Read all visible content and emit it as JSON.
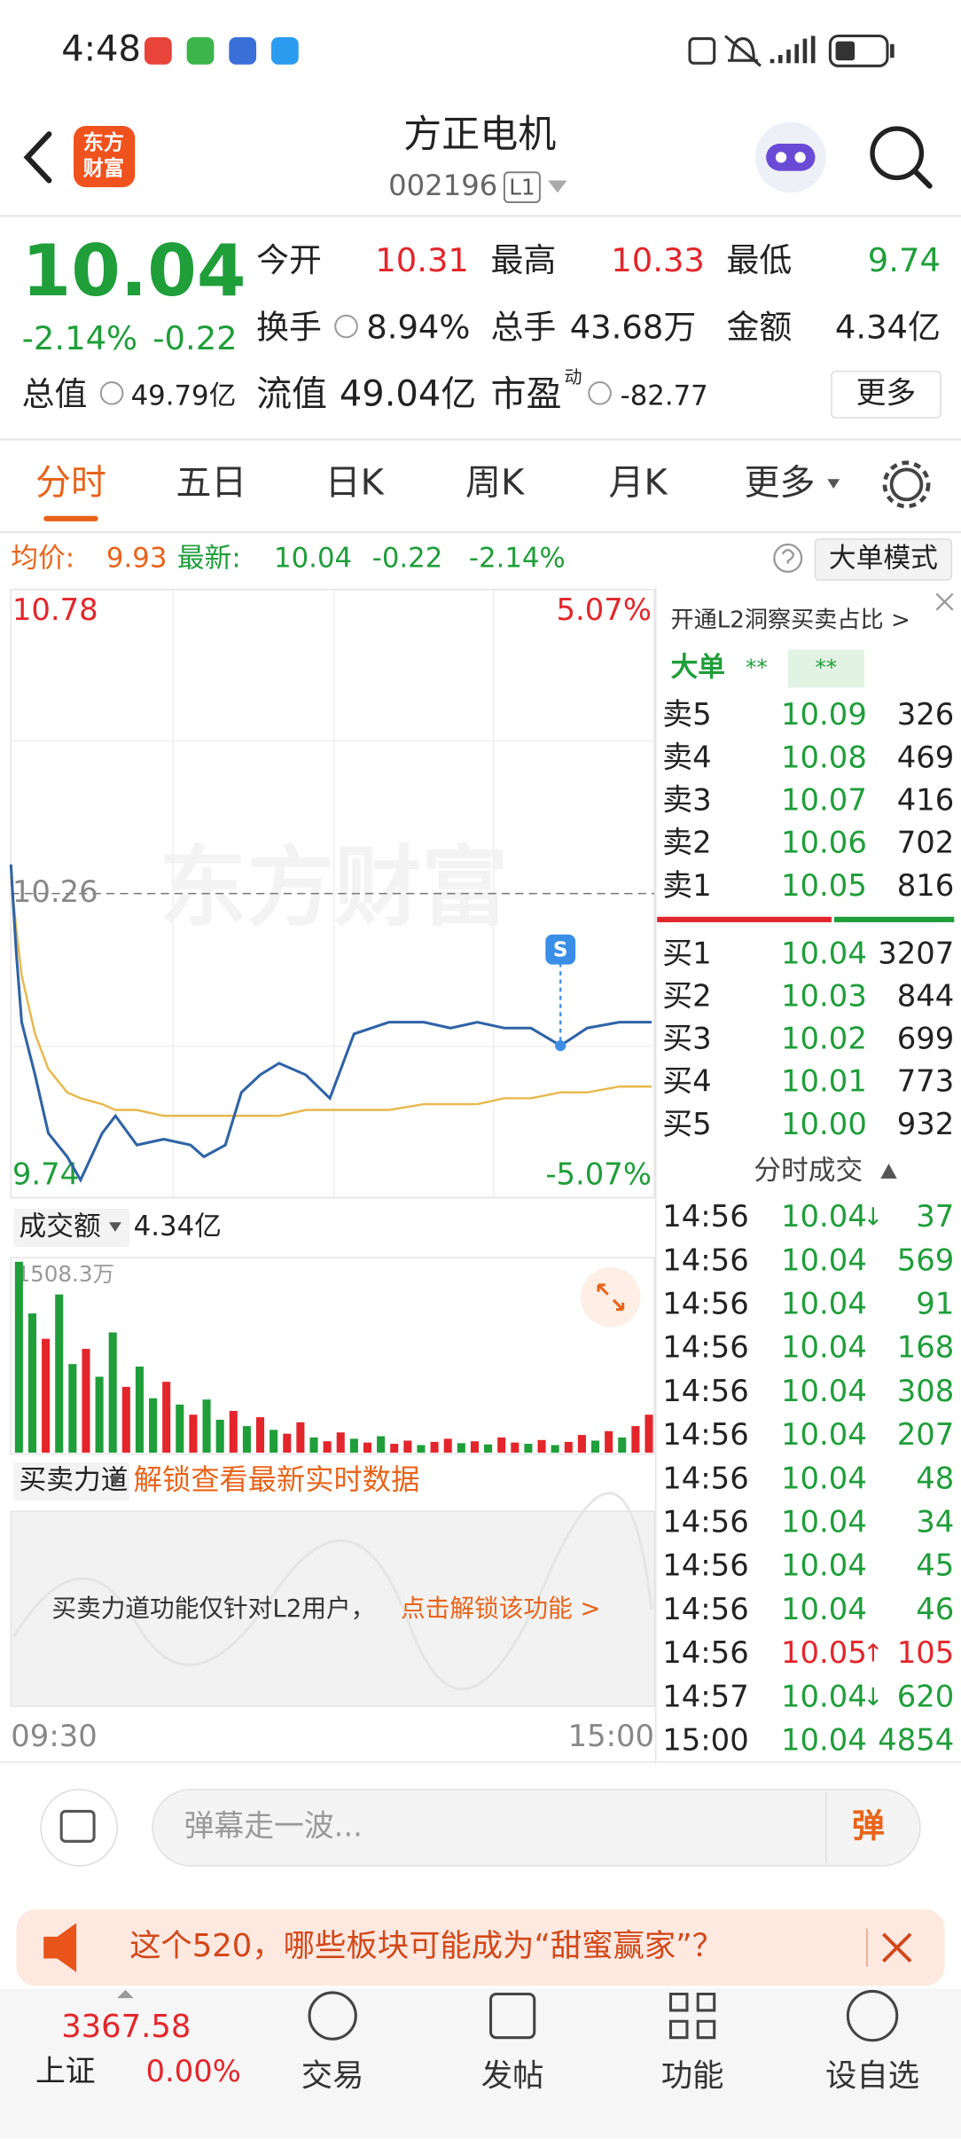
{
  "status": {
    "time": "4:48"
  },
  "header": {
    "logo": [
      "东方",
      "财富"
    ],
    "title": "方正电机",
    "code": "002196",
    "level": "L1"
  },
  "quote": {
    "price": "10.04",
    "change_pct": "-2.14%",
    "change": "-0.22",
    "open_label": "今开",
    "open": "10.31",
    "high_label": "最高",
    "high": "10.33",
    "low_label": "最低",
    "low": "9.74",
    "turnover_label": "换手",
    "turnover": "8.94%",
    "volume_label": "总手",
    "volume": "43.68万",
    "amount_label": "金额",
    "amount": "4.34亿",
    "mcap_label": "总值",
    "mcap": "49.79亿",
    "float_label": "流值",
    "float": "49.04亿",
    "pe_label": "市盈",
    "pe_sup": "动",
    "pe": "-82.77",
    "more": "更多"
  },
  "tabs": [
    "分时",
    "五日",
    "日K",
    "周K",
    "月K",
    "更多"
  ],
  "info": {
    "avg_label": "均价:",
    "avg": "9.93",
    "latest_label": "最新:",
    "latest": "10.04",
    "change": "-0.22",
    "change_pct": "-2.14%",
    "mode": "大单模式"
  },
  "chart_data": [
    {
      "type": "line",
      "watermark": "东方财富",
      "x": [
        0,
        2,
        4,
        9,
        14,
        21,
        26,
        34,
        39,
        47,
        57,
        67,
        72,
        80,
        86,
        93,
        100,
        110,
        119,
        128,
        141,
        154,
        164,
        174,
        184,
        194,
        205,
        215,
        227,
        239
      ],
      "xlim": [
        0,
        240
      ],
      "xticks": [
        {
          "value": 0,
          "label": "09:30"
        },
        {
          "value": 240,
          "label": "15:00"
        }
      ],
      "ylim": [
        9.74,
        10.78
      ],
      "yticks": [
        10.78,
        10.26,
        9.74
      ],
      "y2lim": [
        -5.07,
        5.07
      ],
      "y2ticks": [
        {
          "value": 5.07,
          "label": "5.07%"
        },
        {
          "value": -5.07,
          "label": "-5.07%"
        }
      ],
      "series": [
        {
          "color": "#2f63a6",
          "values": [
            10.31,
            10.16,
            10.04,
            9.95,
            9.85,
            9.81,
            9.77,
            9.85,
            9.88,
            9.83,
            9.84,
            9.83,
            9.81,
            9.83,
            9.92,
            9.95,
            9.97,
            9.95,
            9.91,
            10.02,
            10.04,
            10.04,
            10.03,
            10.04,
            10.03,
            10.03,
            10.0,
            10.03,
            10.04,
            10.04
          ]
        },
        {
          "color": "#e9b84c",
          "values": [
            10.29,
            10.2,
            10.12,
            10.02,
            9.96,
            9.92,
            9.91,
            9.9,
            9.89,
            9.89,
            9.88,
            9.88,
            9.88,
            9.88,
            9.88,
            9.88,
            9.88,
            9.89,
            9.89,
            9.89,
            9.89,
            9.9,
            9.9,
            9.9,
            9.91,
            9.91,
            9.92,
            9.92,
            9.93,
            9.93
          ]
        }
      ],
      "marker": {
        "x": 205,
        "label": "S"
      }
    },
    {
      "type": "bar",
      "title": "成交额",
      "total": "4.34亿",
      "x": [
        0,
        5,
        10,
        15,
        20,
        25,
        30,
        35,
        40,
        45,
        50,
        55,
        60,
        65,
        70,
        75,
        80,
        85,
        90,
        95,
        100,
        105,
        110,
        115,
        120,
        125,
        130,
        135,
        140,
        145,
        150,
        155,
        160,
        165,
        170,
        175,
        180,
        185,
        190,
        195,
        200,
        205,
        210,
        215,
        220,
        225,
        230,
        235
      ],
      "xlim": [
        0,
        240
      ],
      "ylim": [
        0,
        1508.3
      ],
      "yticks": [
        {
          "value": 1508.3,
          "label": "1508.3万"
        }
      ],
      "values": [
        1508.3,
        1100,
        900,
        1250,
        700,
        820,
        600,
        950,
        520,
        680,
        430,
        560,
        380,
        300,
        420,
        260,
        330,
        210,
        280,
        180,
        150,
        240,
        120,
        90,
        160,
        110,
        80,
        130,
        70,
        95,
        60,
        85,
        110,
        75,
        90,
        65,
        120,
        80,
        70,
        100,
        60,
        85,
        140,
        95,
        170,
        120,
        210,
        300
      ],
      "colors": [
        "#1f9e3a",
        "#1f9e3a",
        "#e3262b",
        "#1f9e3a",
        "#1f9e3a",
        "#e3262b",
        "#1f9e3a",
        "#1f9e3a",
        "#e3262b",
        "#1f9e3a",
        "#1f9e3a",
        "#e3262b",
        "#1f9e3a",
        "#e3262b",
        "#1f9e3a",
        "#1f9e3a",
        "#e3262b",
        "#1f9e3a",
        "#e3262b",
        "#1f9e3a",
        "#e3262b",
        "#e3262b",
        "#1f9e3a",
        "#e3262b",
        "#e3262b",
        "#1f9e3a",
        "#e3262b",
        "#1f9e3a",
        "#e3262b",
        "#e3262b",
        "#1f9e3a",
        "#e3262b",
        "#e3262b",
        "#1f9e3a",
        "#e3262b",
        "#1f9e3a",
        "#e3262b",
        "#e3262b",
        "#1f9e3a",
        "#e3262b",
        "#1f9e3a",
        "#e3262b",
        "#e3262b",
        "#1f9e3a",
        "#e3262b",
        "#1f9e3a",
        "#e3262b",
        "#e3262b"
      ]
    }
  ],
  "force": {
    "label": "买卖力道",
    "unlock": "解锁查看最新实时数据",
    "notice": "买卖力道功能仅针对L2用户，",
    "link": "点击解锁该功能 >"
  },
  "orderbook": {
    "l2": "开通L2洞察买卖占比 >",
    "big": "大单",
    "stars": [
      "**",
      "**"
    ],
    "asks": [
      {
        "label": "卖5",
        "price": "10.09",
        "volume": "326"
      },
      {
        "label": "卖4",
        "price": "10.08",
        "volume": "469"
      },
      {
        "label": "卖3",
        "price": "10.07",
        "volume": "416"
      },
      {
        "label": "卖2",
        "price": "10.06",
        "volume": "702"
      },
      {
        "label": "卖1",
        "price": "10.05",
        "volume": "816"
      }
    ],
    "bids": [
      {
        "label": "买1",
        "price": "10.04",
        "volume": "3207"
      },
      {
        "label": "买2",
        "price": "10.03",
        "volume": "844"
      },
      {
        "label": "买3",
        "price": "10.02",
        "volume": "699"
      },
      {
        "label": "买4",
        "price": "10.01",
        "volume": "773"
      },
      {
        "label": "买5",
        "price": "10.00",
        "volume": "932"
      }
    ]
  },
  "trades": {
    "title": "分时成交",
    "rows": [
      {
        "time": "14:56",
        "price": "10.04",
        "arrow": "↓",
        "volume": "37",
        "color": "#1f9e3a"
      },
      {
        "time": "14:56",
        "price": "10.04",
        "volume": "569",
        "color": "#1f9e3a"
      },
      {
        "time": "14:56",
        "price": "10.04",
        "volume": "91",
        "color": "#1f9e3a"
      },
      {
        "time": "14:56",
        "price": "10.04",
        "volume": "168",
        "color": "#1f9e3a"
      },
      {
        "time": "14:56",
        "price": "10.04",
        "volume": "308",
        "color": "#1f9e3a"
      },
      {
        "time": "14:56",
        "price": "10.04",
        "volume": "207",
        "color": "#1f9e3a"
      },
      {
        "time": "14:56",
        "price": "10.04",
        "volume": "48",
        "color": "#1f9e3a"
      },
      {
        "time": "14:56",
        "price": "10.04",
        "volume": "34",
        "color": "#1f9e3a"
      },
      {
        "time": "14:56",
        "price": "10.04",
        "volume": "45",
        "color": "#1f9e3a"
      },
      {
        "time": "14:56",
        "price": "10.04",
        "volume": "46",
        "color": "#1f9e3a"
      },
      {
        "time": "14:56",
        "price": "10.05",
        "arrow": "↑",
        "volume": "105",
        "color": "#e3262b"
      },
      {
        "time": "14:57",
        "price": "10.04",
        "arrow": "↓",
        "volume": "620",
        "color": "#1f9e3a"
      },
      {
        "time": "15:00",
        "price": "10.04",
        "volume": "4854",
        "color": "#1f9e3a"
      }
    ]
  },
  "danmu": {
    "placeholder": "弹幕走一波...",
    "button": "弹"
  },
  "banner": {
    "text": "这个520，哪些板块可能成为“甜蜜赢家”？"
  },
  "bottom": {
    "index_value": "3367.58",
    "index_name": "上证",
    "index_pct": "0.00%",
    "items": [
      "交易",
      "发帖",
      "功能",
      "设自选"
    ]
  }
}
